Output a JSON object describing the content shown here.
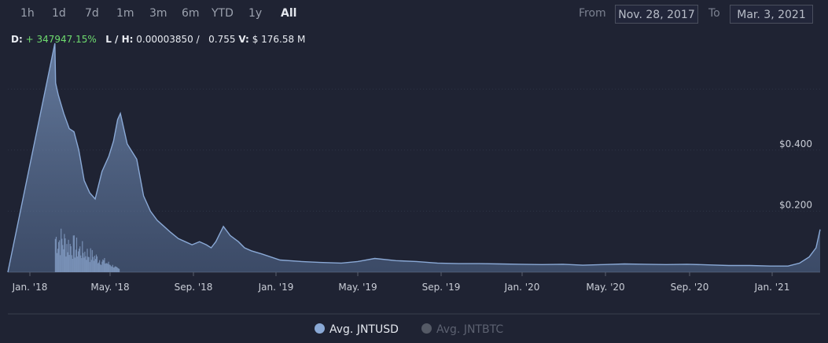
{
  "ranges": [
    "1h",
    "1d",
    "7d",
    "1m",
    "3m",
    "6m",
    "YTD",
    "1y",
    "All"
  ],
  "active_range": "All",
  "date_range": {
    "from_label": "From",
    "from": "Nov. 28, 2017",
    "to_label": "To",
    "to": "Mar. 3, 2021"
  },
  "stats": {
    "d_label": "D:",
    "d_value": "+ 347947.15%",
    "lh_label": "L / H:",
    "low": "0.00003850 /",
    "high": "0.755",
    "v_label": "V:",
    "v_value": "$ 176.58 M"
  },
  "colors": {
    "background": "#1f2333",
    "usd_series": "#8aa9d6",
    "btc_series": "#555a66",
    "positive": "#6fdc6f"
  },
  "chart_data": {
    "type": "area",
    "title": "",
    "xlabel": "",
    "ylabel": "",
    "x_ticks": [
      "Jan. '18",
      "May. '18",
      "Sep. '18",
      "Jan. '19",
      "May. '19",
      "Sep. '19",
      "Jan. '20",
      "May. '20",
      "Sep. '20",
      "Jan. '21"
    ],
    "y_ticks": [
      "$0.200",
      "$0.400"
    ],
    "y_tick_values": [
      0.2,
      0.4
    ],
    "ylim": [
      0,
      0.75
    ],
    "xlim": [
      "2017-11-28",
      "2021-03-03"
    ],
    "grid": true,
    "legend_position": "bottom-center",
    "series": [
      {
        "name": "Avg. JNTUSD",
        "color": "#8aa9d6",
        "visible": true,
        "x": [
          "2017-11-28",
          "2018-02-05",
          "2018-02-06",
          "2018-02-10",
          "2018-02-18",
          "2018-02-26",
          "2018-03-05",
          "2018-03-12",
          "2018-03-20",
          "2018-03-28",
          "2018-04-05",
          "2018-04-15",
          "2018-04-25",
          "2018-05-02",
          "2018-05-08",
          "2018-05-12",
          "2018-05-22",
          "2018-06-05",
          "2018-06-15",
          "2018-06-25",
          "2018-07-05",
          "2018-07-15",
          "2018-07-25",
          "2018-08-05",
          "2018-08-15",
          "2018-08-25",
          "2018-09-05",
          "2018-09-15",
          "2018-09-22",
          "2018-09-29",
          "2018-10-10",
          "2018-10-20",
          "2018-11-01",
          "2018-11-10",
          "2018-11-20",
          "2018-12-05",
          "2019-01-01",
          "2019-02-01",
          "2019-03-01",
          "2019-04-01",
          "2019-04-25",
          "2019-05-20",
          "2019-06-20",
          "2019-07-20",
          "2019-08-20",
          "2019-09-20",
          "2019-10-20",
          "2019-11-20",
          "2019-12-20",
          "2020-01-20",
          "2020-02-20",
          "2020-03-20",
          "2020-04-20",
          "2020-05-20",
          "2020-06-20",
          "2020-07-20",
          "2020-08-20",
          "2020-09-20",
          "2020-10-20",
          "2020-11-20",
          "2020-12-20",
          "2021-01-15",
          "2021-02-01",
          "2021-02-15",
          "2021-02-25",
          "2021-03-03"
        ],
        "y": [
          0.0,
          0.75,
          0.62,
          0.58,
          0.52,
          0.47,
          0.46,
          0.4,
          0.3,
          0.26,
          0.24,
          0.33,
          0.38,
          0.43,
          0.5,
          0.52,
          0.42,
          0.37,
          0.25,
          0.2,
          0.17,
          0.15,
          0.13,
          0.11,
          0.1,
          0.09,
          0.1,
          0.09,
          0.08,
          0.1,
          0.15,
          0.12,
          0.1,
          0.08,
          0.07,
          0.06,
          0.04,
          0.035,
          0.032,
          0.03,
          0.035,
          0.045,
          0.038,
          0.035,
          0.03,
          0.028,
          0.028,
          0.027,
          0.026,
          0.025,
          0.026,
          0.023,
          0.025,
          0.027,
          0.026,
          0.025,
          0.026,
          0.024,
          0.022,
          0.022,
          0.02,
          0.02,
          0.03,
          0.05,
          0.08,
          0.14
        ]
      },
      {
        "name": "Avg. JNTBTC",
        "color": "#555a66",
        "visible": false,
        "x": [],
        "y": []
      }
    ]
  }
}
